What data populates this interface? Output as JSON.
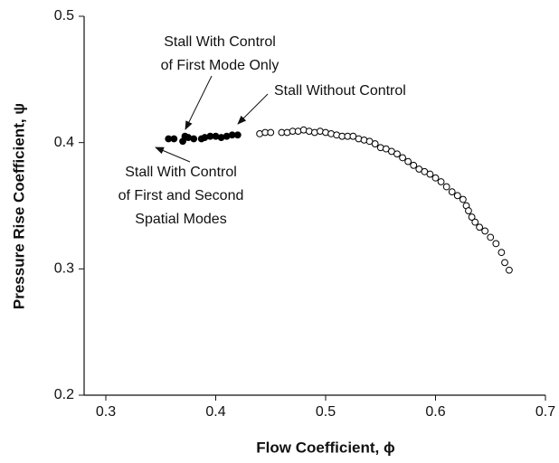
{
  "chart_data": {
    "type": "scatter",
    "xlabel": "Flow Coefficient, ϕ",
    "ylabel": "Pressure Rise Coefficient, ψ",
    "xlim": [
      0.3,
      0.7
    ],
    "xticks": [
      0.3,
      0.4,
      0.5,
      0.6,
      0.7
    ],
    "ylim": [
      0.2,
      0.5
    ],
    "yticks": [
      0.2,
      0.3,
      0.4,
      0.5
    ],
    "series": [
      {
        "color": "#000000",
        "filled": true,
        "x": [
          0.357,
          0.362,
          0.37,
          0.372,
          0.375,
          0.38,
          0.387,
          0.39,
          0.395,
          0.4,
          0.405,
          0.41,
          0.415,
          0.42
        ],
        "values": [
          0.403,
          0.403,
          0.401,
          0.405,
          0.404,
          0.403,
          0.403,
          0.404,
          0.405,
          0.405,
          0.404,
          0.405,
          0.406,
          0.406
        ]
      },
      {
        "color": "#000000",
        "filled": false,
        "x": [
          0.44,
          0.445,
          0.45,
          0.46,
          0.465,
          0.47,
          0.475,
          0.48,
          0.485,
          0.49,
          0.495,
          0.5,
          0.505,
          0.51,
          0.515,
          0.52,
          0.525,
          0.53,
          0.535,
          0.54,
          0.545,
          0.55,
          0.555,
          0.56,
          0.565,
          0.57,
          0.575,
          0.58,
          0.585,
          0.59,
          0.595,
          0.6,
          0.605,
          0.61,
          0.615,
          0.62,
          0.625,
          0.628,
          0.63,
          0.633,
          0.636,
          0.64,
          0.645,
          0.65,
          0.655,
          0.66,
          0.663,
          0.667
        ],
        "values": [
          0.407,
          0.408,
          0.408,
          0.408,
          0.408,
          0.409,
          0.409,
          0.41,
          0.409,
          0.408,
          0.409,
          0.408,
          0.407,
          0.406,
          0.405,
          0.405,
          0.405,
          0.403,
          0.402,
          0.401,
          0.399,
          0.396,
          0.395,
          0.393,
          0.391,
          0.388,
          0.385,
          0.382,
          0.379,
          0.377,
          0.375,
          0.372,
          0.369,
          0.365,
          0.361,
          0.358,
          0.355,
          0.35,
          0.346,
          0.341,
          0.337,
          0.333,
          0.33,
          0.325,
          0.32,
          0.313,
          0.305,
          0.299
        ]
      }
    ],
    "annotations": [
      [
        "Stall With Control",
        "of First Mode Only"
      ],
      [
        "Stall Without Control"
      ],
      [
        "Stall With Control",
        "of First and Second",
        "Spatial Modes"
      ]
    ]
  }
}
